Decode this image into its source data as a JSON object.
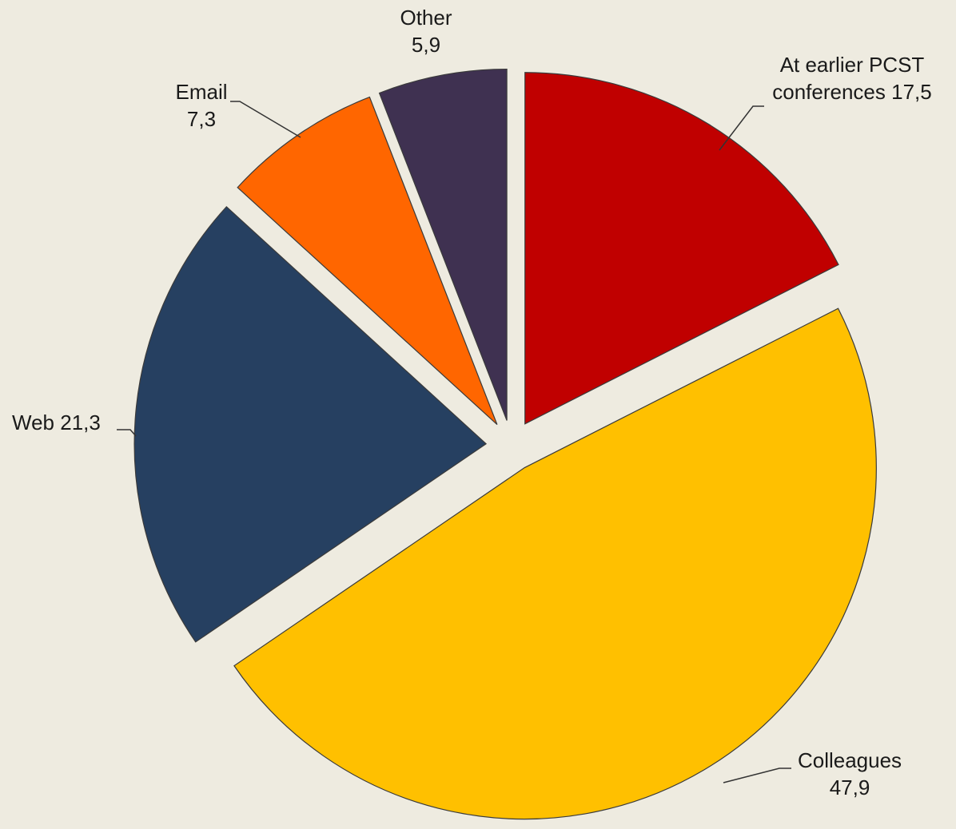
{
  "chart_data": {
    "type": "pie",
    "categories": [
      "At earlier PCST conferences",
      "Colleagues",
      "Web",
      "Email",
      "Other"
    ],
    "values": [
      17.5,
      47.9,
      21.3,
      7.3,
      5.9
    ],
    "value_labels": [
      "17,5",
      "47,9",
      "21,3",
      "7,3",
      "5,9"
    ],
    "colors": [
      "#c00000",
      "#ffc000",
      "#264061",
      "#ff6600",
      "#3f3151"
    ],
    "exploded": true
  }
}
